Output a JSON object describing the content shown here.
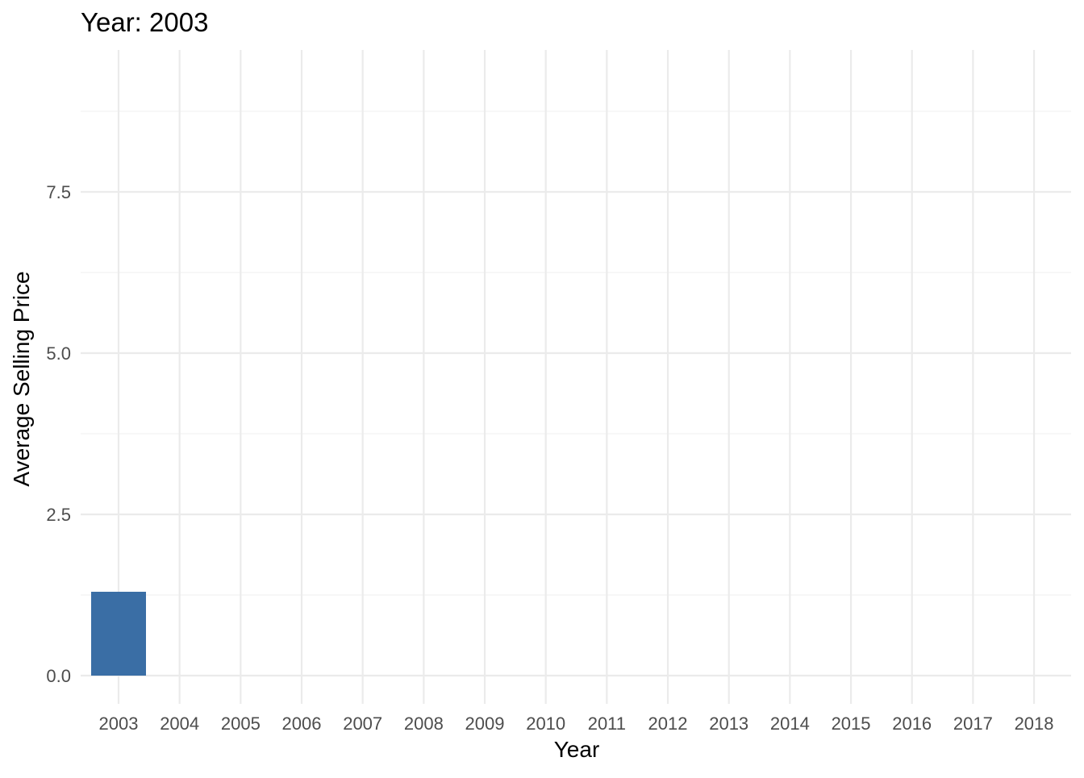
{
  "chart_data": {
    "type": "bar",
    "title": "Year: 2003",
    "xlabel": "Year",
    "ylabel": "Average Selling Price",
    "categories": [
      "2003",
      "2004",
      "2005",
      "2006",
      "2007",
      "2008",
      "2009",
      "2010",
      "2011",
      "2012",
      "2013",
      "2014",
      "2015",
      "2016",
      "2017",
      "2018"
    ],
    "values": [
      1.3,
      null,
      null,
      null,
      null,
      null,
      null,
      null,
      null,
      null,
      null,
      null,
      null,
      null,
      null,
      null
    ],
    "ylim": [
      0,
      9.6
    ],
    "yticks": [
      0.0,
      2.5,
      5.0,
      7.5
    ],
    "ytick_labels": [
      "0.0",
      "2.5",
      "5.0",
      "7.5"
    ],
    "y_minor_gridlines": [
      1.25,
      3.75,
      6.25,
      8.75
    ],
    "grid": true,
    "legend": "none",
    "colors": {
      "bar": "#3a6ea5",
      "grid_major": "#ebebeb",
      "grid_minor": "#f2f2f2",
      "tick_text": "#4d4d4d",
      "text": "#000000"
    }
  }
}
